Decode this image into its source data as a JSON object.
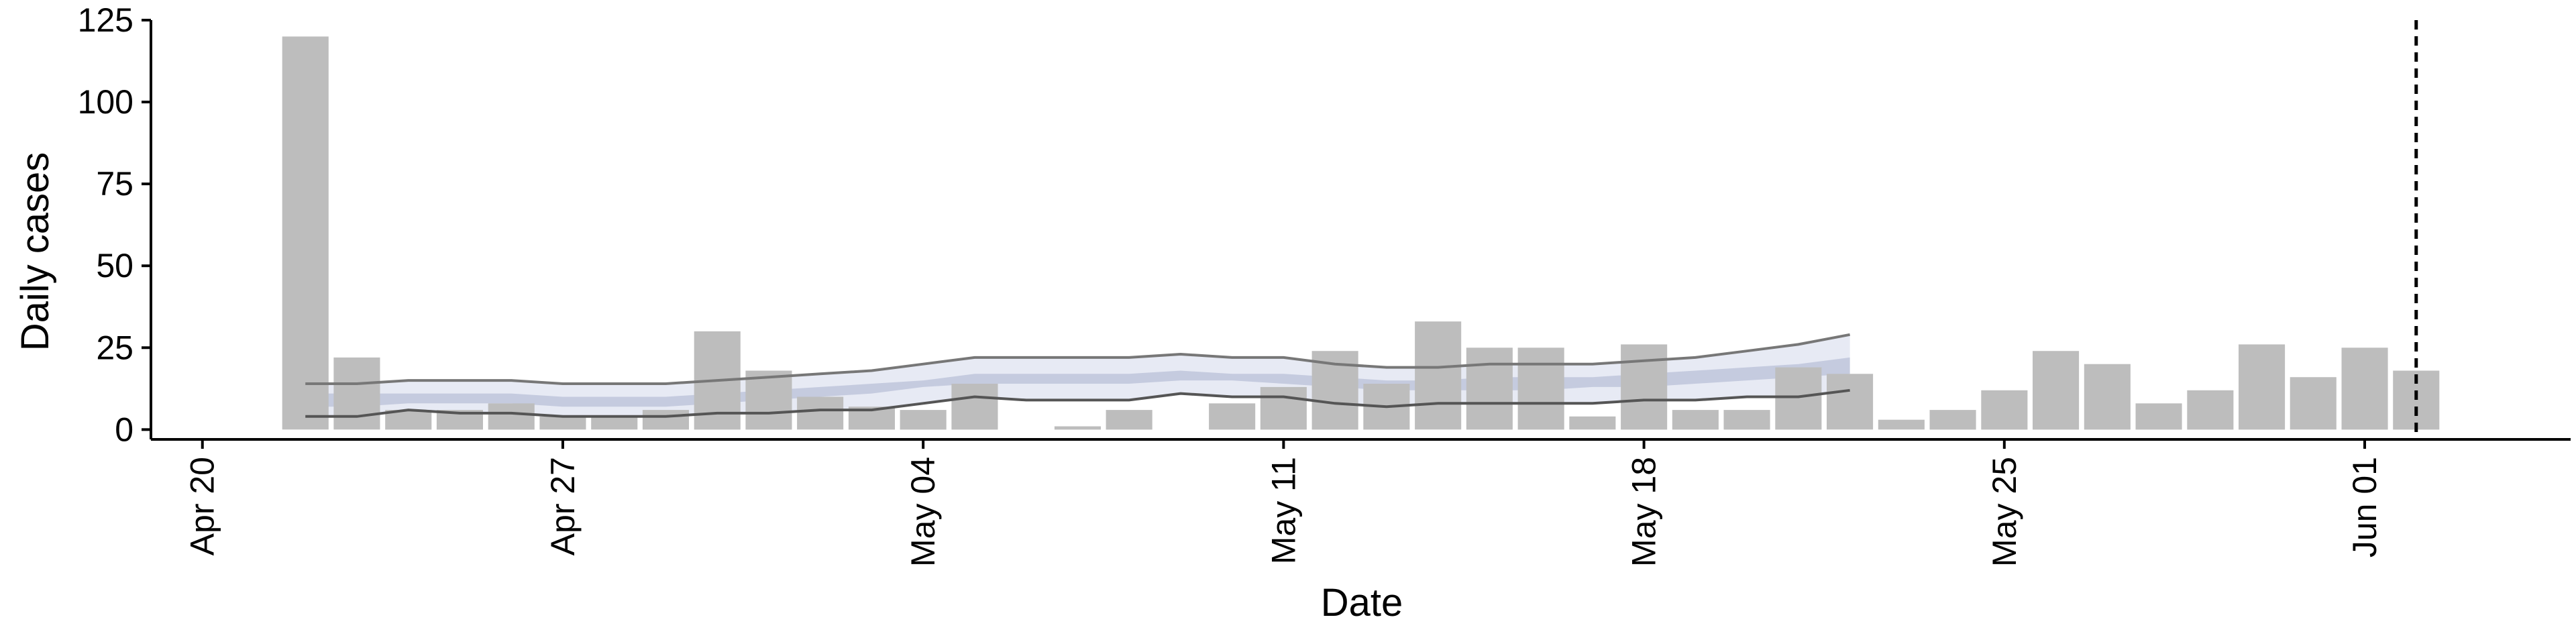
{
  "chart_data": {
    "type": "bar",
    "xlabel": "Date",
    "ylabel": "Daily cases",
    "x_ticks": [
      "Apr 20",
      "Apr 27",
      "May 04",
      "May 11",
      "May 18",
      "May 25",
      "Jun 01"
    ],
    "y_ticks": [
      "0",
      "25",
      "50",
      "75",
      "100",
      "125"
    ],
    "ylim": [
      -3,
      125
    ],
    "x_range": [
      "2020-04-19",
      "2020-06-05"
    ],
    "grid": false,
    "legend": "none",
    "reference_line": {
      "date": "2020-06-02",
      "style": "dashed",
      "color": "#000000"
    },
    "series": [
      {
        "type": "bar",
        "color": "#bdbdbd",
        "x": [
          "2020-04-22",
          "2020-04-23",
          "2020-04-24",
          "2020-04-25",
          "2020-04-26",
          "2020-04-27",
          "2020-04-28",
          "2020-04-29",
          "2020-04-30",
          "2020-05-01",
          "2020-05-02",
          "2020-05-03",
          "2020-05-04",
          "2020-05-05",
          "2020-05-06",
          "2020-05-07",
          "2020-05-08",
          "2020-05-09",
          "2020-05-10",
          "2020-05-11",
          "2020-05-12",
          "2020-05-13",
          "2020-05-14",
          "2020-05-15",
          "2020-05-16",
          "2020-05-17",
          "2020-05-18",
          "2020-05-19",
          "2020-05-20",
          "2020-05-21",
          "2020-05-22",
          "2020-05-23",
          "2020-05-24",
          "2020-05-25",
          "2020-05-26",
          "2020-05-27",
          "2020-05-28",
          "2020-05-29",
          "2020-05-30",
          "2020-05-31",
          "2020-06-01",
          "2020-06-02"
        ],
        "values": [
          120,
          22,
          6,
          6,
          8,
          4,
          4,
          6,
          30,
          18,
          10,
          7,
          6,
          14,
          0,
          1,
          6,
          0,
          8,
          13,
          24,
          14,
          33,
          25,
          25,
          4,
          26,
          6,
          6,
          19,
          17,
          3,
          6,
          12,
          24,
          20,
          8,
          12,
          26,
          16,
          25,
          18
        ]
      },
      {
        "type": "ribbon",
        "name": "",
        "color": "#dfe3f0",
        "x": [
          "2020-04-22",
          "2020-04-23",
          "2020-04-24",
          "2020-04-25",
          "2020-04-26",
          "2020-04-27",
          "2020-04-28",
          "2020-04-29",
          "2020-04-30",
          "2020-05-01",
          "2020-05-02",
          "2020-05-03",
          "2020-05-04",
          "2020-05-05",
          "2020-05-06",
          "2020-05-07",
          "2020-05-08",
          "2020-05-09",
          "2020-05-10",
          "2020-05-11",
          "2020-05-12",
          "2020-05-13",
          "2020-05-14",
          "2020-05-15",
          "2020-05-16",
          "2020-05-17",
          "2020-05-18",
          "2020-05-19",
          "2020-05-20",
          "2020-05-21",
          "2020-05-22"
        ],
        "lower": [
          4,
          4,
          6,
          5,
          5,
          4,
          4,
          4,
          5,
          5,
          6,
          6,
          8,
          10,
          9,
          9,
          9,
          11,
          10,
          10,
          8,
          7,
          8,
          8,
          8,
          8,
          9,
          9,
          10,
          10,
          12
        ],
        "upper": [
          14,
          14,
          15,
          15,
          15,
          14,
          14,
          14,
          15,
          16,
          17,
          18,
          20,
          22,
          22,
          22,
          22,
          23,
          22,
          22,
          20,
          19,
          19,
          20,
          20,
          20,
          21,
          22,
          24,
          26,
          29
        ]
      },
      {
        "type": "ribbon",
        "name": "",
        "color": "#b9c0d8",
        "x": [
          "2020-04-22",
          "2020-04-23",
          "2020-04-24",
          "2020-04-25",
          "2020-04-26",
          "2020-04-27",
          "2020-04-28",
          "2020-04-29",
          "2020-04-30",
          "2020-05-01",
          "2020-05-02",
          "2020-05-03",
          "2020-05-04",
          "2020-05-05",
          "2020-05-06",
          "2020-05-07",
          "2020-05-08",
          "2020-05-09",
          "2020-05-10",
          "2020-05-11",
          "2020-05-12",
          "2020-05-13",
          "2020-05-14",
          "2020-05-15",
          "2020-05-16",
          "2020-05-17",
          "2020-05-18",
          "2020-05-19",
          "2020-05-20",
          "2020-05-21",
          "2020-05-22"
        ],
        "lower": [
          7,
          7,
          8,
          8,
          8,
          7,
          7,
          7,
          8,
          9,
          10,
          11,
          13,
          14,
          14,
          14,
          14,
          15,
          15,
          14,
          13,
          12,
          12,
          12,
          12,
          13,
          13,
          14,
          15,
          16,
          17
        ],
        "upper": [
          11,
          11,
          11,
          11,
          11,
          10,
          10,
          10,
          11,
          12,
          13,
          14,
          15,
          17,
          17,
          17,
          17,
          18,
          17,
          17,
          16,
          15,
          15,
          16,
          16,
          16,
          17,
          18,
          19,
          20,
          22
        ]
      },
      {
        "type": "line",
        "name": "",
        "color": "#777777",
        "x": [
          "2020-04-22",
          "2020-04-23",
          "2020-04-24",
          "2020-04-25",
          "2020-04-26",
          "2020-04-27",
          "2020-04-28",
          "2020-04-29",
          "2020-04-30",
          "2020-05-01",
          "2020-05-02",
          "2020-05-03",
          "2020-05-04",
          "2020-05-05",
          "2020-05-06",
          "2020-05-07",
          "2020-05-08",
          "2020-05-09",
          "2020-05-10",
          "2020-05-11",
          "2020-05-12",
          "2020-05-13",
          "2020-05-14",
          "2020-05-15",
          "2020-05-16",
          "2020-05-17",
          "2020-05-18",
          "2020-05-19",
          "2020-05-20",
          "2020-05-21",
          "2020-05-22"
        ],
        "values": [
          14,
          14,
          15,
          15,
          15,
          14,
          14,
          14,
          15,
          16,
          17,
          18,
          20,
          22,
          22,
          22,
          22,
          23,
          22,
          22,
          20,
          19,
          19,
          20,
          20,
          20,
          21,
          22,
          24,
          26,
          29
        ]
      },
      {
        "type": "line",
        "name": "",
        "color": "#555555",
        "x": [
          "2020-04-22",
          "2020-04-23",
          "2020-04-24",
          "2020-04-25",
          "2020-04-26",
          "2020-04-27",
          "2020-04-28",
          "2020-04-29",
          "2020-04-30",
          "2020-05-01",
          "2020-05-02",
          "2020-05-03",
          "2020-05-04",
          "2020-05-05",
          "2020-05-06",
          "2020-05-07",
          "2020-05-08",
          "2020-05-09",
          "2020-05-10",
          "2020-05-11",
          "2020-05-12",
          "2020-05-13",
          "2020-05-14",
          "2020-05-15",
          "2020-05-16",
          "2020-05-17",
          "2020-05-18",
          "2020-05-19",
          "2020-05-20",
          "2020-05-21",
          "2020-05-22"
        ],
        "values": [
          4,
          4,
          6,
          5,
          5,
          4,
          4,
          4,
          5,
          5,
          6,
          6,
          8,
          10,
          9,
          9,
          9,
          11,
          10,
          10,
          8,
          7,
          8,
          8,
          8,
          8,
          9,
          9,
          10,
          10,
          12
        ]
      }
    ]
  }
}
